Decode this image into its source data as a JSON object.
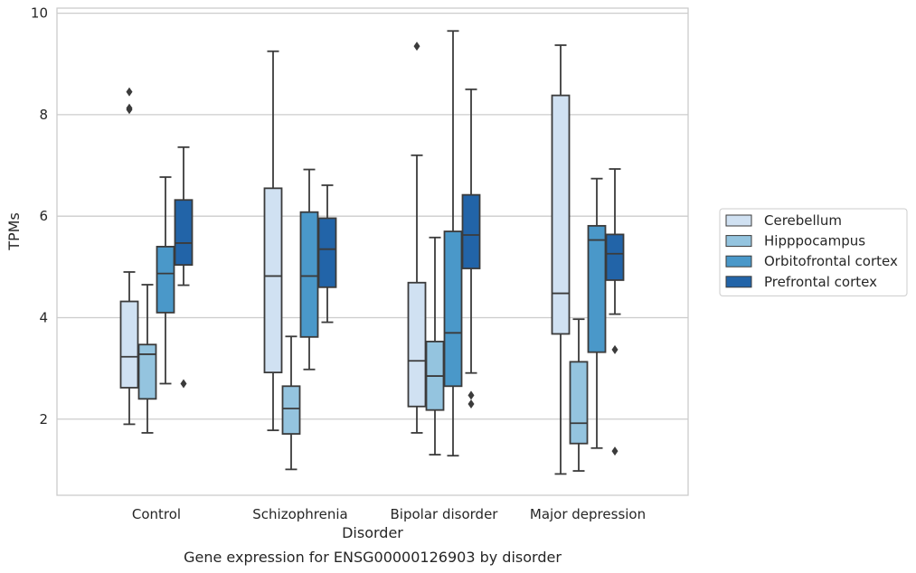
{
  "chart_data": {
    "type": "box",
    "caption": "Gene expression for ENSG00000126903 by disorder",
    "xlabel": "Disorder",
    "ylabel": "TPMs",
    "ylim": [
      0.5,
      10.1
    ],
    "yticks": [
      2,
      4,
      6,
      8,
      10
    ],
    "grid": "horizontal",
    "legend_position": "right",
    "categories": [
      "Control",
      "Schizophrenia",
      "Bipolar disorder",
      "Major depression"
    ],
    "series": [
      {
        "name": "Cerebellum",
        "color": "#d0e1f2",
        "boxes": [
          {
            "whisker_low": 1.9,
            "q1": 2.62,
            "median": 3.23,
            "q3": 4.32,
            "whisker_high": 4.9,
            "outliers": [
              8.1,
              8.13,
              8.45
            ]
          },
          {
            "whisker_low": 1.78,
            "q1": 2.92,
            "median": 4.82,
            "q3": 6.55,
            "whisker_high": 9.25,
            "outliers": []
          },
          {
            "whisker_low": 1.73,
            "q1": 2.25,
            "median": 3.15,
            "q3": 4.69,
            "whisker_high": 7.2,
            "outliers": [
              9.35
            ]
          },
          {
            "whisker_low": 0.92,
            "q1": 3.68,
            "median": 4.48,
            "q3": 8.38,
            "whisker_high": 9.37,
            "outliers": []
          }
        ]
      },
      {
        "name": "Hipppocampus",
        "color": "#94c4df",
        "boxes": [
          {
            "whisker_low": 1.73,
            "q1": 2.4,
            "median": 3.28,
            "q3": 3.47,
            "whisker_high": 4.65,
            "outliers": []
          },
          {
            "whisker_low": 1.01,
            "q1": 1.71,
            "median": 2.21,
            "q3": 2.65,
            "whisker_high": 3.63,
            "outliers": []
          },
          {
            "whisker_low": 1.3,
            "q1": 2.18,
            "median": 2.85,
            "q3": 3.53,
            "whisker_high": 5.58,
            "outliers": []
          },
          {
            "whisker_low": 0.98,
            "q1": 1.52,
            "median": 1.92,
            "q3": 3.13,
            "whisker_high": 3.97,
            "outliers": []
          }
        ]
      },
      {
        "name": "Orbitofrontal cortex",
        "color": "#4a98c9",
        "boxes": [
          {
            "whisker_low": 2.7,
            "q1": 4.1,
            "median": 4.87,
            "q3": 5.4,
            "whisker_high": 6.77,
            "outliers": []
          },
          {
            "whisker_low": 2.98,
            "q1": 3.62,
            "median": 4.82,
            "q3": 6.08,
            "whisker_high": 6.92,
            "outliers": []
          },
          {
            "whisker_low": 1.28,
            "q1": 2.65,
            "median": 3.7,
            "q3": 5.7,
            "whisker_high": 9.65,
            "outliers": []
          },
          {
            "whisker_low": 1.43,
            "q1": 3.32,
            "median": 5.53,
            "q3": 5.81,
            "whisker_high": 6.74,
            "outliers": []
          }
        ]
      },
      {
        "name": "Prefrontal cortex",
        "color": "#2264a8",
        "boxes": [
          {
            "whisker_low": 4.64,
            "q1": 5.04,
            "median": 5.47,
            "q3": 6.32,
            "whisker_high": 7.36,
            "outliers": [
              2.7
            ]
          },
          {
            "whisker_low": 3.91,
            "q1": 4.6,
            "median": 5.35,
            "q3": 5.96,
            "whisker_high": 6.61,
            "outliers": []
          },
          {
            "whisker_low": 2.91,
            "q1": 4.97,
            "median": 5.63,
            "q3": 6.42,
            "whisker_high": 8.5,
            "outliers": [
              2.3,
              2.47
            ]
          },
          {
            "whisker_low": 4.07,
            "q1": 4.74,
            "median": 5.26,
            "q3": 5.64,
            "whisker_high": 6.93,
            "outliers": [
              3.37,
              1.37
            ]
          }
        ]
      }
    ]
  }
}
